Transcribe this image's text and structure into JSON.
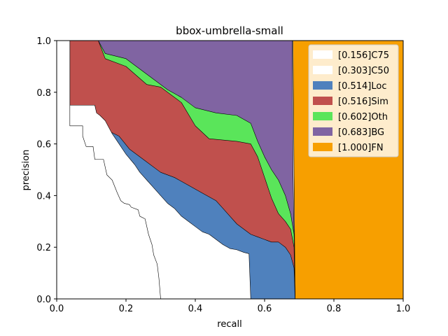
{
  "chart_data": {
    "type": "area",
    "title": "bbox-umbrella-small",
    "xlabel": "recall",
    "ylabel": "precision",
    "xlim": [
      0,
      1
    ],
    "ylim": [
      0,
      1
    ],
    "xticks": [
      "0.0",
      "0.2",
      "0.4",
      "0.6",
      "0.8",
      "1.0"
    ],
    "yticks": [
      "0.0",
      "0.2",
      "0.4",
      "0.6",
      "0.8",
      "1.0"
    ],
    "legend_position": "top-right",
    "series": [
      {
        "name": "[0.156]C75",
        "color": "#ffffff",
        "points": [
          [
            0.038,
            1.0
          ],
          [
            0.038,
            0.67
          ],
          [
            0.075,
            0.67
          ],
          [
            0.075,
            0.63
          ],
          [
            0.085,
            0.59
          ],
          [
            0.105,
            0.59
          ],
          [
            0.11,
            0.54
          ],
          [
            0.135,
            0.54
          ],
          [
            0.145,
            0.48
          ],
          [
            0.16,
            0.46
          ],
          [
            0.175,
            0.41
          ],
          [
            0.185,
            0.38
          ],
          [
            0.195,
            0.37
          ],
          [
            0.21,
            0.365
          ],
          [
            0.215,
            0.355
          ],
          [
            0.235,
            0.345
          ],
          [
            0.24,
            0.32
          ],
          [
            0.255,
            0.31
          ],
          [
            0.265,
            0.25
          ],
          [
            0.275,
            0.21
          ],
          [
            0.28,
            0.17
          ],
          [
            0.29,
            0.135
          ],
          [
            0.295,
            0.08
          ],
          [
            0.3,
            0.0
          ]
        ]
      },
      {
        "name": "[0.303]C50",
        "color": "#ffffff",
        "points": [
          [
            0.038,
            1.0
          ],
          [
            0.038,
            0.75
          ],
          [
            0.11,
            0.75
          ],
          [
            0.115,
            0.72
          ],
          [
            0.125,
            0.71
          ],
          [
            0.14,
            0.69
          ],
          [
            0.16,
            0.64
          ],
          [
            0.18,
            0.6
          ],
          [
            0.2,
            0.56
          ],
          [
            0.225,
            0.52
          ],
          [
            0.24,
            0.49
          ],
          [
            0.26,
            0.46
          ],
          [
            0.28,
            0.43
          ],
          [
            0.3,
            0.4
          ],
          [
            0.32,
            0.37
          ],
          [
            0.34,
            0.35
          ],
          [
            0.36,
            0.32
          ],
          [
            0.38,
            0.3
          ],
          [
            0.4,
            0.28
          ],
          [
            0.42,
            0.26
          ],
          [
            0.44,
            0.25
          ],
          [
            0.46,
            0.23
          ],
          [
            0.48,
            0.21
          ],
          [
            0.5,
            0.195
          ],
          [
            0.52,
            0.19
          ],
          [
            0.54,
            0.18
          ],
          [
            0.555,
            0.175
          ],
          [
            0.56,
            0.0
          ]
        ]
      },
      {
        "name": "[0.514]Loc",
        "color": "#4f81bd",
        "points": [
          [
            0.028,
            1.0
          ],
          [
            0.038,
            0.75
          ],
          [
            0.11,
            0.75
          ],
          [
            0.12,
            0.67
          ],
          [
            0.15,
            0.65
          ],
          [
            0.18,
            0.63
          ],
          [
            0.21,
            0.58
          ],
          [
            0.25,
            0.54
          ],
          [
            0.3,
            0.49
          ],
          [
            0.34,
            0.47
          ],
          [
            0.38,
            0.44
          ],
          [
            0.42,
            0.41
          ],
          [
            0.46,
            0.38
          ],
          [
            0.48,
            0.35
          ],
          [
            0.5,
            0.32
          ],
          [
            0.52,
            0.29
          ],
          [
            0.54,
            0.27
          ],
          [
            0.56,
            0.25
          ],
          [
            0.58,
            0.24
          ],
          [
            0.6,
            0.23
          ],
          [
            0.62,
            0.22
          ],
          [
            0.64,
            0.22
          ],
          [
            0.66,
            0.2
          ],
          [
            0.675,
            0.17
          ],
          [
            0.685,
            0.12
          ],
          [
            0.688,
            0.0
          ]
        ]
      },
      {
        "name": "[0.516]Sim",
        "color": "#c0504d",
        "points": [
          [
            0.028,
            1.0
          ],
          [
            0.12,
            1.0
          ],
          [
            0.14,
            0.93
          ],
          [
            0.2,
            0.9
          ],
          [
            0.26,
            0.83
          ],
          [
            0.3,
            0.82
          ],
          [
            0.36,
            0.76
          ],
          [
            0.4,
            0.67
          ],
          [
            0.44,
            0.62
          ],
          [
            0.52,
            0.61
          ],
          [
            0.56,
            0.6
          ],
          [
            0.58,
            0.55
          ],
          [
            0.6,
            0.47
          ],
          [
            0.62,
            0.39
          ],
          [
            0.64,
            0.33
          ],
          [
            0.66,
            0.3
          ],
          [
            0.675,
            0.27
          ],
          [
            0.685,
            0.2
          ],
          [
            0.688,
            0.0
          ]
        ]
      },
      {
        "name": "[0.602]Oth",
        "color": "#5ae55a",
        "points": [
          [
            0.028,
            1.0
          ],
          [
            0.12,
            1.0
          ],
          [
            0.14,
            0.95
          ],
          [
            0.2,
            0.93
          ],
          [
            0.24,
            0.89
          ],
          [
            0.28,
            0.85
          ],
          [
            0.32,
            0.81
          ],
          [
            0.36,
            0.78
          ],
          [
            0.4,
            0.74
          ],
          [
            0.46,
            0.72
          ],
          [
            0.52,
            0.71
          ],
          [
            0.56,
            0.68
          ],
          [
            0.58,
            0.61
          ],
          [
            0.6,
            0.55
          ],
          [
            0.62,
            0.5
          ],
          [
            0.64,
            0.46
          ],
          [
            0.66,
            0.4
          ],
          [
            0.675,
            0.33
          ],
          [
            0.685,
            0.25
          ],
          [
            0.688,
            0.0
          ]
        ]
      },
      {
        "name": "[0.683]BG",
        "color": "#8064a2",
        "points": [
          [
            0.028,
            1.0
          ],
          [
            0.68,
            1.0
          ],
          [
            0.682,
            0.5
          ],
          [
            0.688,
            0.0
          ]
        ]
      },
      {
        "name": "[1.000]FN",
        "color": "#f79f00",
        "points": [
          [
            0.688,
            0.0
          ],
          [
            0.682,
            1.0
          ],
          [
            1.0,
            1.0
          ],
          [
            1.0,
            0.0
          ]
        ]
      }
    ]
  }
}
